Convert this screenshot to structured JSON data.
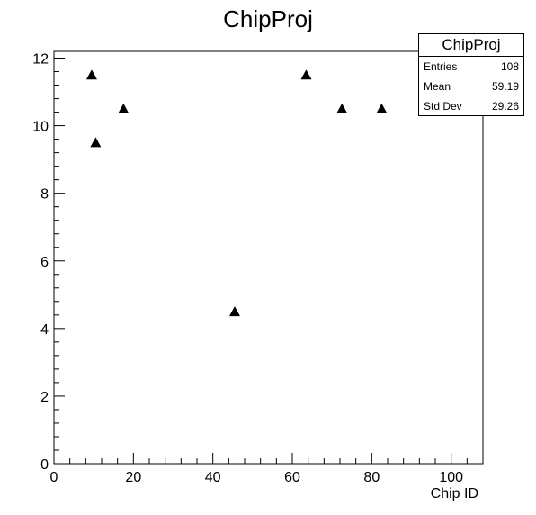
{
  "chart_data": {
    "type": "scatter",
    "title": "ChipProj",
    "xlabel": "Chip ID",
    "ylabel": "",
    "xlim": [
      0,
      108
    ],
    "ylim": [
      0,
      12.2
    ],
    "xticks": [
      0,
      20,
      40,
      60,
      80,
      100
    ],
    "yticks": [
      0,
      2,
      4,
      6,
      8,
      10,
      12
    ],
    "x_minor_step": 4,
    "y_minor_step": 0.4,
    "grid": false,
    "marker": "triangle-up",
    "series": [
      {
        "x": [
          9.5,
          10.5,
          17.5,
          45.5,
          63.5,
          72.5,
          82.5
        ],
        "y": [
          11.5,
          9.5,
          10.5,
          4.5,
          11.5,
          10.5,
          10.5
        ]
      }
    ],
    "stats": {
      "name": "ChipProj",
      "entries_label": "Entries",
      "entries": "108",
      "mean_label": "Mean",
      "mean": "59.19",
      "stddev_label": "Std Dev",
      "stddev": "29.26"
    }
  }
}
